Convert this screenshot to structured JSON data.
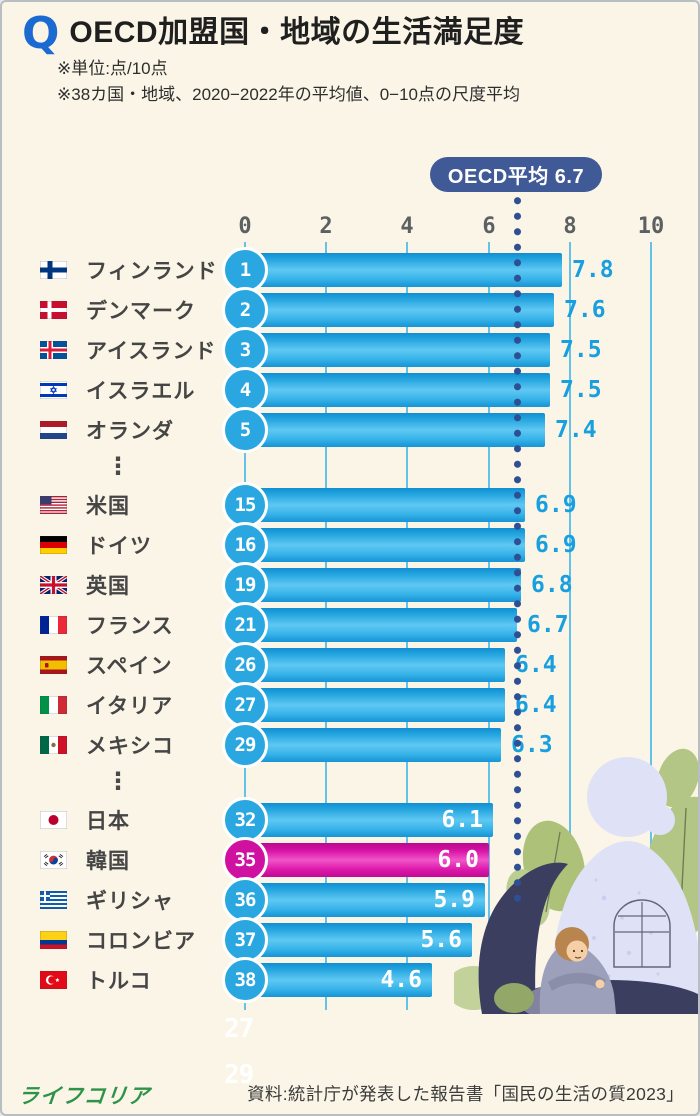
{
  "header": {
    "q_mark": "Q",
    "title": "OECD加盟国・地域の生活満足度",
    "note1": "※単位:点/10点",
    "note2": "※38カ国・地域、2020−2022年の平均値、0−10点の尺度平均"
  },
  "oecd": {
    "badge_label": "OECD平均 6.7",
    "average_value": 6.7
  },
  "chart_data": {
    "type": "bar",
    "orientation": "horizontal",
    "title": "OECD加盟国・地域の生活満足度",
    "unit": "点/10点",
    "xlim": [
      0,
      10
    ],
    "grid": true,
    "axis_ticks": [
      0,
      2,
      4,
      6,
      8,
      10
    ],
    "average_line": {
      "label": "OECD平均 6.7",
      "value": 6.7
    },
    "ellipsis_glyph": "⋮",
    "gap_after_ranks": [
      5,
      29
    ],
    "rows": [
      {
        "rank": 1,
        "country": "フィンランド",
        "flag": "fi",
        "value": 7.8,
        "value_label": "7.8",
        "value_inside": false,
        "highlight": false
      },
      {
        "rank": 2,
        "country": "デンマーク",
        "flag": "dk",
        "value": 7.6,
        "value_label": "7.6",
        "value_inside": false,
        "highlight": false
      },
      {
        "rank": 3,
        "country": "アイスランド",
        "flag": "is",
        "value": 7.5,
        "value_label": "7.5",
        "value_inside": false,
        "highlight": false
      },
      {
        "rank": 4,
        "country": "イスラエル",
        "flag": "il",
        "value": 7.5,
        "value_label": "7.5",
        "value_inside": false,
        "highlight": false
      },
      {
        "rank": 5,
        "country": "オランダ",
        "flag": "nl",
        "value": 7.4,
        "value_label": "7.4",
        "value_inside": false,
        "highlight": false
      },
      {
        "rank": 15,
        "country": "米国",
        "flag": "us",
        "value": 6.9,
        "value_label": "6.9",
        "value_inside": false,
        "highlight": false
      },
      {
        "rank": 16,
        "country": "ドイツ",
        "flag": "de",
        "value": 6.9,
        "value_label": "6.9",
        "value_inside": false,
        "highlight": false
      },
      {
        "rank": 19,
        "country": "英国",
        "flag": "gb",
        "value": 6.8,
        "value_label": "6.8",
        "value_inside": false,
        "highlight": false
      },
      {
        "rank": 21,
        "country": "フランス",
        "flag": "fr",
        "value": 6.7,
        "value_label": "6.7",
        "value_inside": false,
        "highlight": false
      },
      {
        "rank": 26,
        "country": "スペイン",
        "flag": "es",
        "value": 6.4,
        "value_label": "6.4",
        "value_inside": false,
        "highlight": false
      },
      {
        "rank": 27,
        "country": "イタリア",
        "flag": "it",
        "value": 6.4,
        "value_label": "6.4",
        "value_inside": false,
        "highlight": false
      },
      {
        "rank": 29,
        "country": "メキシコ",
        "flag": "mx",
        "value": 6.3,
        "value_label": "6.3",
        "value_inside": false,
        "highlight": false
      },
      {
        "rank": 32,
        "country": "日本",
        "flag": "jp",
        "value": 6.1,
        "value_label": "6.1",
        "value_inside": true,
        "highlight": false
      },
      {
        "rank": 35,
        "country": "韓国",
        "flag": "kr",
        "value": 6.0,
        "value_label": "6.0",
        "value_inside": true,
        "highlight": true
      },
      {
        "rank": 36,
        "country": "ギリシャ",
        "flag": "gr",
        "value": 5.9,
        "value_label": "5.9",
        "value_inside": true,
        "highlight": false
      },
      {
        "rank": 37,
        "country": "コロンビア",
        "flag": "co",
        "value": 5.6,
        "value_label": "5.6",
        "value_inside": true,
        "highlight": false
      },
      {
        "rank": 38,
        "country": "トルコ",
        "flag": "tr",
        "value": 4.6,
        "value_label": "4.6",
        "value_inside": true,
        "highlight": false
      }
    ]
  },
  "ghost_labels": [
    "27",
    "29"
  ],
  "footer": {
    "logo": "ライフコリア",
    "source": "資料:統計庁が発表した報告書「国民の生活の質2023」"
  },
  "colors": {
    "background": "#faf5e6",
    "bar_blue": "#29abe2",
    "bar_pink": "#d912a6",
    "badge_navy": "#3f5a96",
    "dot_navy": "#2e4f93",
    "value_blue": "#189fe0",
    "axis_gray": "#5d6063",
    "title_q_blue": "#1a6ad2",
    "logo_green": "#2e9349"
  }
}
